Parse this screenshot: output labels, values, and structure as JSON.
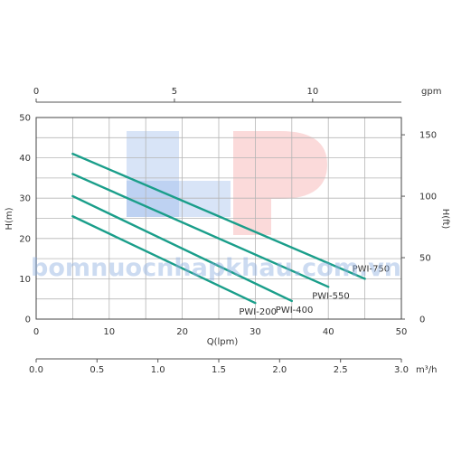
{
  "chart_data": {
    "type": "line",
    "xlabel": "Q(lpm)",
    "ylabel": "H(m)",
    "xlim": [
      0,
      50
    ],
    "ylim": [
      0,
      50
    ],
    "xticks": [
      0,
      10,
      20,
      30,
      40,
      50
    ],
    "yticks": [
      0,
      10,
      20,
      30,
      40,
      50
    ],
    "grid": true,
    "top_axis": {
      "unit": "gpm",
      "ticks": [
        "0",
        "5",
        "10"
      ],
      "values_lpm": [
        0,
        18.93,
        37.85
      ]
    },
    "right_axis": {
      "label": "H(ft)",
      "ticks": [
        "0",
        "50",
        "100",
        "150"
      ],
      "values_m": [
        0,
        15.24,
        30.48,
        45.72
      ]
    },
    "bottom_axis2": {
      "unit": "m³/h",
      "ticks": [
        "0.0",
        "0.5",
        "1.0",
        "1.5",
        "2.0",
        "2.5",
        "3.0"
      ],
      "values_lpm": [
        0,
        8.33,
        16.67,
        25,
        33.33,
        41.67,
        50
      ]
    },
    "series_color": "#1a9e8a",
    "series": [
      {
        "name": "PWI-750",
        "x": [
          5,
          45
        ],
        "y": [
          41,
          10
        ]
      },
      {
        "name": "PWI-550",
        "x": [
          5,
          40
        ],
        "y": [
          36,
          8
        ]
      },
      {
        "name": "PWI-400",
        "x": [
          5,
          35
        ],
        "y": [
          30.5,
          4.5
        ]
      },
      {
        "name": "PWI-200",
        "x": [
          5,
          30
        ],
        "y": [
          25.5,
          4
        ]
      }
    ]
  },
  "watermark": {
    "text": "bomnuocnhapkhau.com.vn",
    "logo_colors": {
      "left": "#8fb3e8",
      "right": "#f4a3a3"
    }
  }
}
